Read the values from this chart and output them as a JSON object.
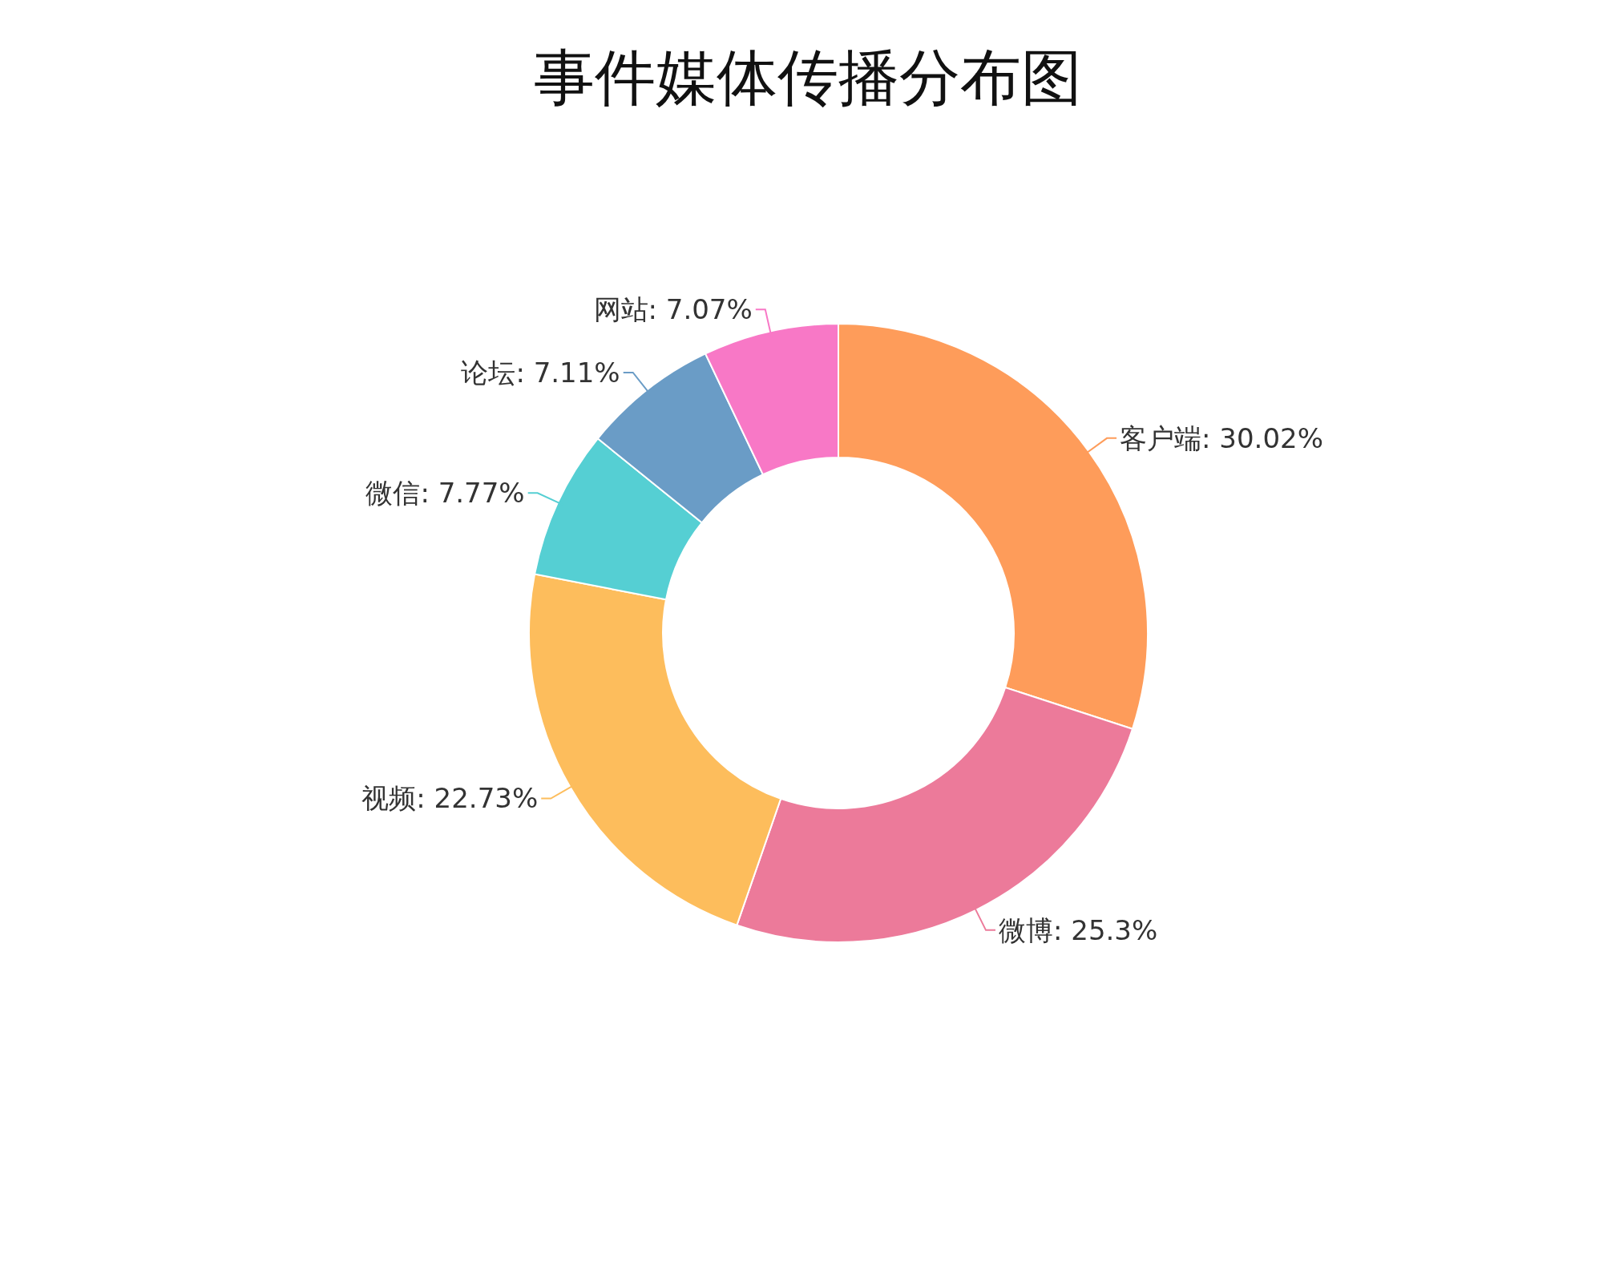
{
  "chart_data": {
    "type": "donut",
    "title": "事件媒体传播分布图",
    "categories": [
      "客户端",
      "微博",
      "视频",
      "微信",
      "论坛",
      "网站"
    ],
    "values": [
      30.02,
      25.3,
      22.73,
      7.77,
      7.11,
      7.07
    ],
    "value_labels": [
      "30.02%",
      "25.3%",
      "22.73%",
      "7.77%",
      "7.11%",
      "7.07%"
    ],
    "colors": [
      "#fe9c5a",
      "#ec7a9a",
      "#fdbd5c",
      "#55cfd3",
      "#6a9cc6",
      "#f878c6"
    ]
  }
}
